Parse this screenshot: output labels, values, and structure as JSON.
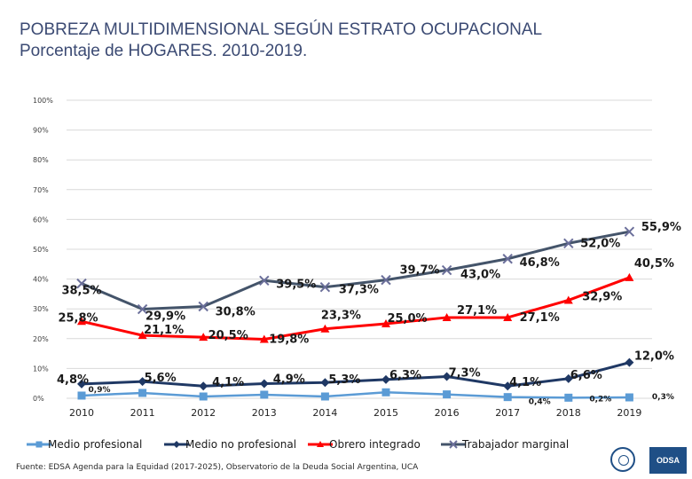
{
  "title": {
    "line1": "POBREZA MULTIDIMENSIONAL SEGÚN ESTRATO OCUPACIONAL",
    "line2": "Porcentaje de HOGARES. 2010-2019."
  },
  "source": "Fuente: EDSA Agenda para la Equidad (2017-2025), Observatorio de la Deuda Social Argentina, UCA",
  "logo_text": "ODSA",
  "chart_data": {
    "type": "line",
    "title": "POBREZA MULTIDIMENSIONAL SEGÚN ESTRATO OCUPACIONAL",
    "subtitle": "Porcentaje de HOGARES. 2010-2019.",
    "x": [
      "2010",
      "2011",
      "2012",
      "2013",
      "2014",
      "2015",
      "2016",
      "2017",
      "2018",
      "2019"
    ],
    "ylim": [
      0,
      100
    ],
    "yticks": [
      "0%",
      "10%",
      "20%",
      "30%",
      "40%",
      "50%",
      "60%",
      "70%",
      "80%",
      "90%",
      "100%"
    ],
    "grid": true,
    "legend_position": "bottom",
    "series": [
      {
        "name": "Medio profesional",
        "color": "#5b9bd5",
        "marker": "square",
        "values": [
          0.9,
          1.8,
          0.6,
          1.2,
          0.6,
          2.0,
          1.3,
          0.4,
          0.2,
          0.3
        ],
        "labels": [
          "0,9%",
          "",
          "",
          "",
          "",
          "",
          "",
          "0,4%",
          "0,2%",
          "0,3%"
        ]
      },
      {
        "name": "Medio no profesional",
        "color": "#1f3864",
        "marker": "diamond",
        "values": [
          4.8,
          5.6,
          4.1,
          4.9,
          5.3,
          6.3,
          7.3,
          4.1,
          6.6,
          12.0
        ],
        "labels": [
          "4,8%",
          "5,6%",
          "4,1%",
          "4,9%",
          "5,3%",
          "6,3%",
          "7,3%",
          "4,1%",
          "6,6%",
          "12,0%"
        ]
      },
      {
        "name": "Obrero integrado",
        "color": "#ff0000",
        "marker": "triangle",
        "values": [
          25.8,
          21.1,
          20.5,
          19.8,
          23.3,
          25.0,
          27.1,
          27.1,
          32.9,
          40.5
        ],
        "labels": [
          "25,8%",
          "21,1%",
          "20,5%",
          "19,8%",
          "23,3%",
          "25,0%",
          "27,1%",
          "27,1%",
          "32,9%",
          "40,5%"
        ]
      },
      {
        "name": "Trabajador marginal",
        "color": "#44546a",
        "marker": "x",
        "values": [
          38.5,
          29.9,
          30.8,
          39.5,
          37.3,
          39.7,
          43.0,
          46.8,
          52.0,
          55.9
        ],
        "labels": [
          "38,5%",
          "29,9%",
          "30,8%",
          "39,5%",
          "37,3%",
          "39,7%",
          "43,0%",
          "46,8%",
          "52,0%",
          "55,9%"
        ]
      }
    ]
  }
}
